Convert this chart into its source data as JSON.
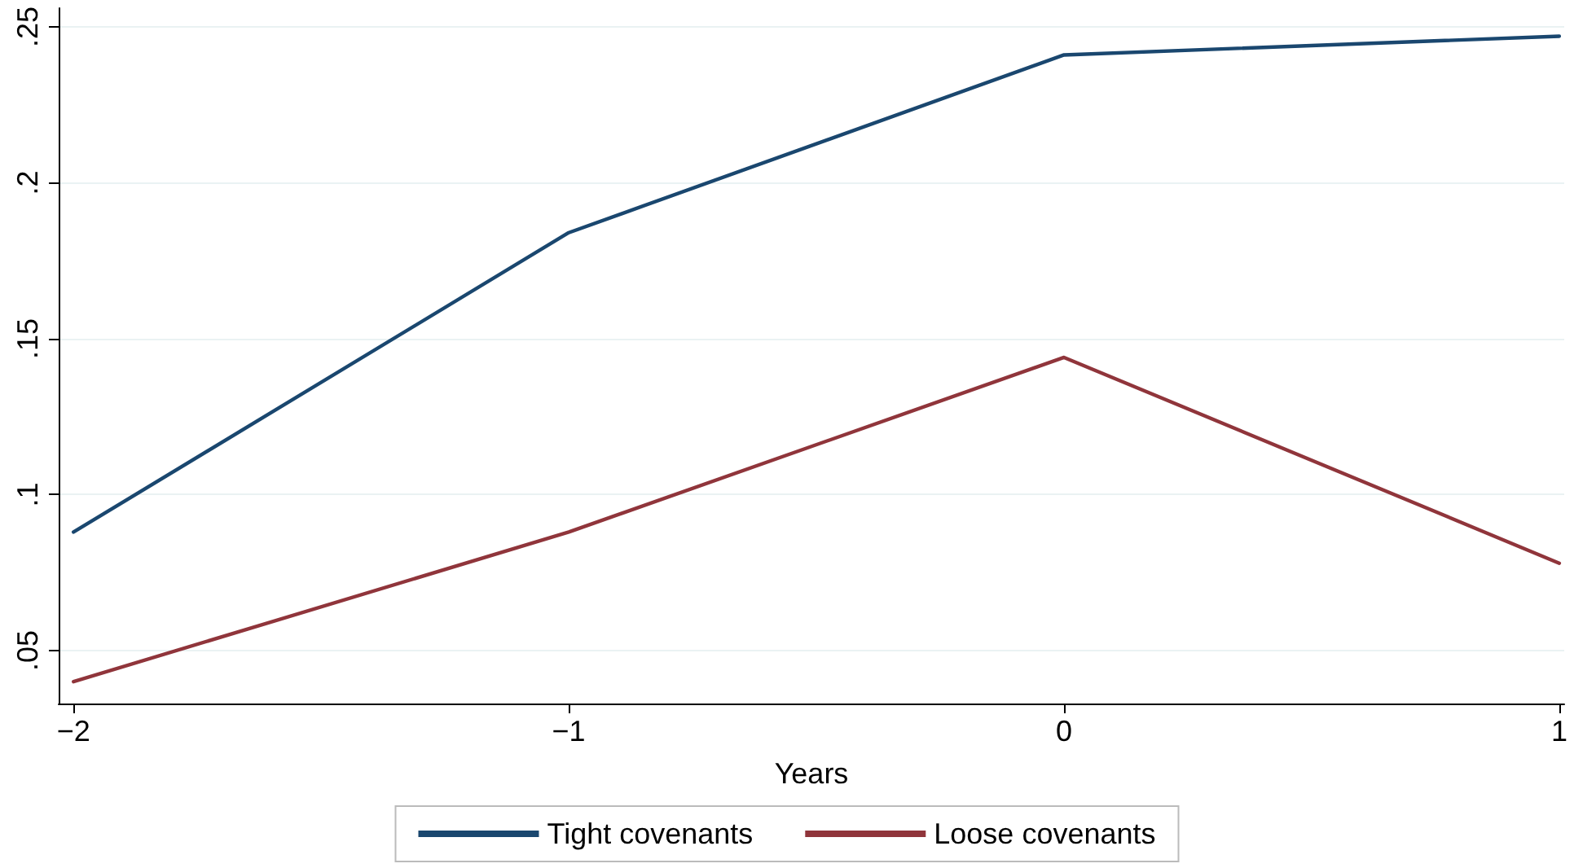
{
  "chart_data": {
    "type": "line",
    "xlabel": "Years",
    "x": [
      -2,
      -1,
      0,
      1
    ],
    "series": [
      {
        "name": "Tight covenants",
        "color": "#1a476f",
        "values": [
          0.088,
          0.184,
          0.241,
          0.247
        ]
      },
      {
        "name": "Loose covenants",
        "color": "#90353b",
        "values": [
          0.04,
          0.088,
          0.144,
          0.078
        ]
      }
    ],
    "xlim": [
      -2.03,
      1.01
    ],
    "xticks": [
      {
        "value": -2,
        "label": "−2"
      },
      {
        "value": -1,
        "label": "−1"
      },
      0,
      1
    ],
    "ylim": [
      0.033,
      0.256
    ],
    "yticks": [
      {
        "value": 0.05,
        "label": ".05"
      },
      {
        "value": 0.1,
        "label": ".1"
      },
      {
        "value": 0.15,
        "label": ".15"
      },
      {
        "value": 0.2,
        "label": ".2"
      },
      {
        "value": 0.25,
        "label": ".25"
      }
    ],
    "grid": "y",
    "legend": "bottom",
    "marker": "none",
    "line_style": "solid"
  }
}
